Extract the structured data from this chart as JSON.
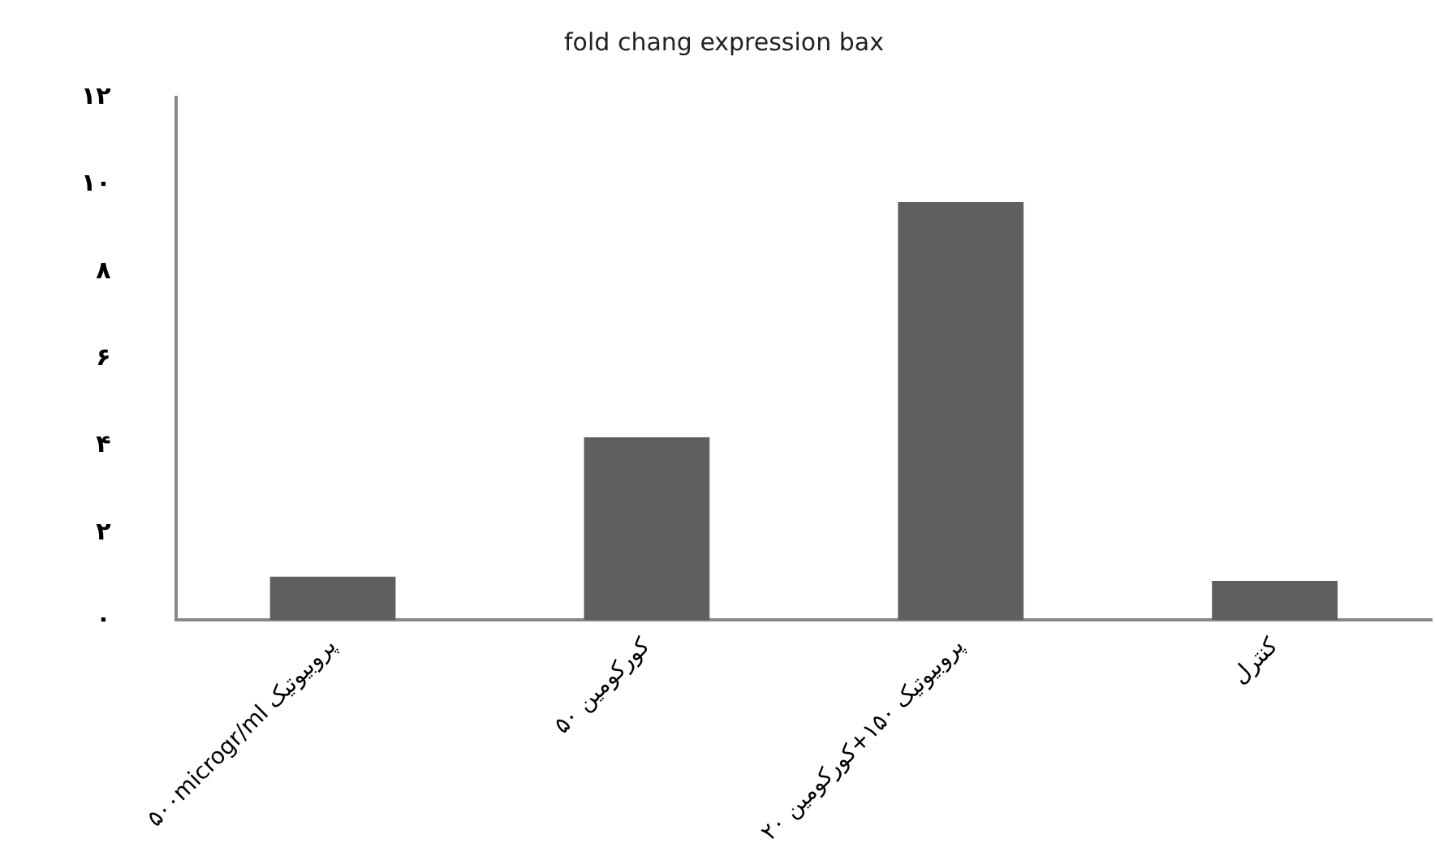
{
  "chart_data": {
    "type": "bar",
    "title": "fold chang expression bax",
    "categories": [
      "پروبیوتیک ۵۰۰microgr/ml",
      "کورکومین ۵۰",
      "پروبیوتیک ۱۵۰+کورکومین ۲۰",
      "کنترل"
    ],
    "values": [
      1.0,
      4.2,
      9.6,
      0.9
    ],
    "color": "#5f5f5f",
    "ylim": [
      0,
      12
    ],
    "yticks": [
      {
        "value": 0,
        "label": "۰"
      },
      {
        "value": 2,
        "label": "۲"
      },
      {
        "value": 4,
        "label": "۴"
      },
      {
        "value": 6,
        "label": "۶"
      },
      {
        "value": 8,
        "label": "۸"
      },
      {
        "value": 10,
        "label": "۱۰"
      },
      {
        "value": 12,
        "label": "۱۲"
      }
    ],
    "grid": false,
    "legend": false
  }
}
